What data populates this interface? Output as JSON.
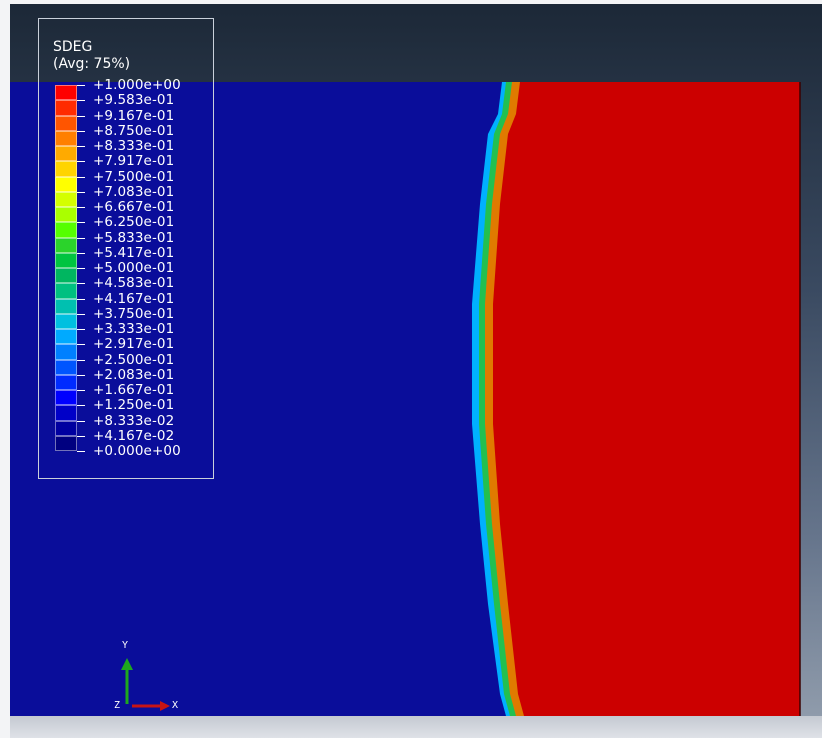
{
  "legend": {
    "title": "SDEG",
    "subtitle": "(Avg: 75%)",
    "colors": [
      "#ff0000",
      "#ff2b00",
      "#ff5500",
      "#ff7f00",
      "#ffaa00",
      "#ffd400",
      "#ffff00",
      "#d4ff00",
      "#aaff00",
      "#55ff00",
      "#2bd32b",
      "#00c440",
      "#00b660",
      "#00c080",
      "#00c0b0",
      "#00c0e0",
      "#00aaff",
      "#0080ff",
      "#0055ff",
      "#002bff",
      "#0000ff",
      "#0000c8",
      "#0000a0",
      "#000080"
    ],
    "labels": [
      "+1.000e+00",
      "+9.583e-01",
      "+9.167e-01",
      "+8.750e-01",
      "+8.333e-01",
      "+7.917e-01",
      "+7.500e-01",
      "+7.083e-01",
      "+6.667e-01",
      "+6.250e-01",
      "+5.833e-01",
      "+5.417e-01",
      "+5.000e-01",
      "+4.583e-01",
      "+4.167e-01",
      "+3.750e-01",
      "+3.333e-01",
      "+2.917e-01",
      "+2.500e-01",
      "+2.083e-01",
      "+1.667e-01",
      "+1.250e-01",
      "+8.333e-02",
      "+4.167e-02",
      "+0.000e+00"
    ]
  },
  "model": {
    "background_color": "#0a0d9a",
    "damaged_color": "#cc0000",
    "transition_colors": [
      "#00b0ff",
      "#22c050",
      "#e07a00"
    ]
  },
  "triad": {
    "y_label": "Y",
    "z_label": "Z",
    "x_label": "X",
    "y_color": "#1ea81e",
    "x_color": "#c81414"
  }
}
